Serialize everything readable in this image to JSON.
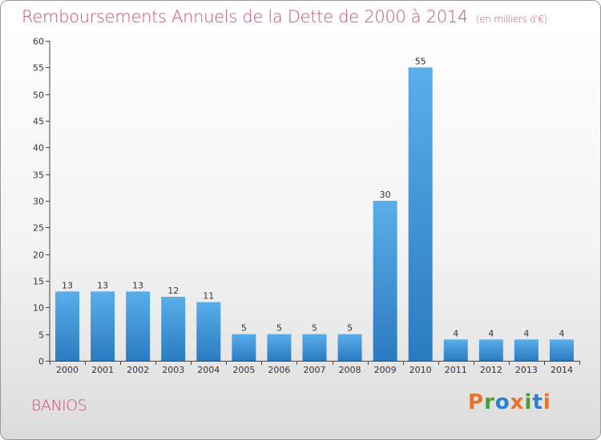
{
  "header": {
    "title": "Remboursements Annuels de la Dette de 2000 à 2014",
    "subtitle": "(en milliers d'€)"
  },
  "footer": {
    "commune": "BANIOS",
    "logo_text": "Proxiti",
    "logo_colors": [
      "#e8732b",
      "#4a9d3a",
      "#2a7fd0",
      "#e8732b",
      "#4a9d3a",
      "#2a7fd0",
      "#e8732b"
    ]
  },
  "chart_data": {
    "type": "bar",
    "categories": [
      "2000",
      "2001",
      "2002",
      "2003",
      "2004",
      "2005",
      "2006",
      "2007",
      "2008",
      "2009",
      "2010",
      "2011",
      "2012",
      "2013",
      "2014"
    ],
    "values": [
      13,
      13,
      13,
      12,
      11,
      5,
      5,
      5,
      5,
      30,
      55,
      4,
      4,
      4,
      4
    ],
    "ylim": [
      0,
      60
    ],
    "yticks": [
      0,
      5,
      10,
      15,
      20,
      25,
      30,
      35,
      40,
      45,
      50,
      55,
      60
    ],
    "grid": false,
    "bar_color_light": "#5aaeea",
    "bar_color_dark": "#2a7bc0"
  }
}
